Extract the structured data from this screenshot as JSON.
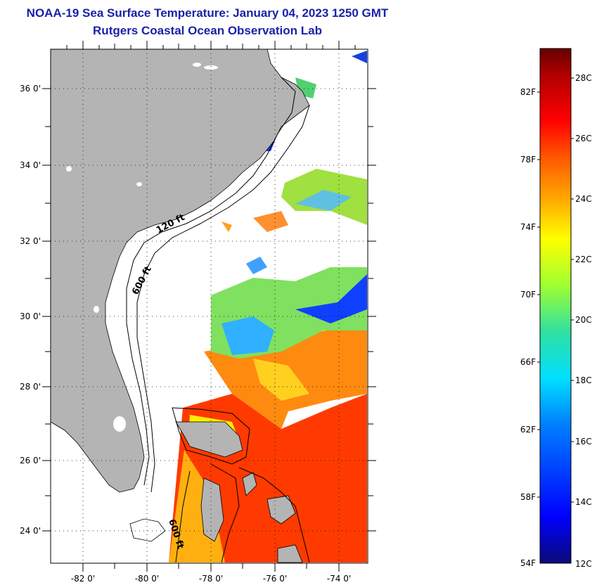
{
  "header": {
    "title_line1": "NOAA-19 Sea Surface Temperature:  January 04, 2023 1250 GMT",
    "title_line2": "Rutgers Coastal Ocean Observation Lab"
  },
  "map": {
    "lat_labels": [
      "36 0'",
      "34 0'",
      "32 0'",
      "30 0'",
      "28 0'",
      "26 0'",
      "24 0'"
    ],
    "lon_labels": [
      "-82 0'",
      "-80 0'",
      "-78 0'",
      "-76 0'",
      "-74 0'"
    ],
    "isobaths": [
      "120 ft",
      "600 ft",
      "600 ft"
    ],
    "colors": {
      "land": "#b4b4b4",
      "frame": "#000000"
    }
  },
  "colorbar": {
    "f_labels": [
      "82F",
      "78F",
      "74F",
      "70F",
      "66F",
      "62F",
      "58F",
      "54F"
    ],
    "c_labels": [
      "28C",
      "26C",
      "24C",
      "22C",
      "20C",
      "18C",
      "16C",
      "14C",
      "12C"
    ],
    "colors": [
      "#0a0a78",
      "#0000ff",
      "#0080ff",
      "#00e0ff",
      "#30e0a0",
      "#a0ff30",
      "#ffff00",
      "#ffb000",
      "#ff6000",
      "#ff0000",
      "#b00000",
      "#640000"
    ]
  }
}
